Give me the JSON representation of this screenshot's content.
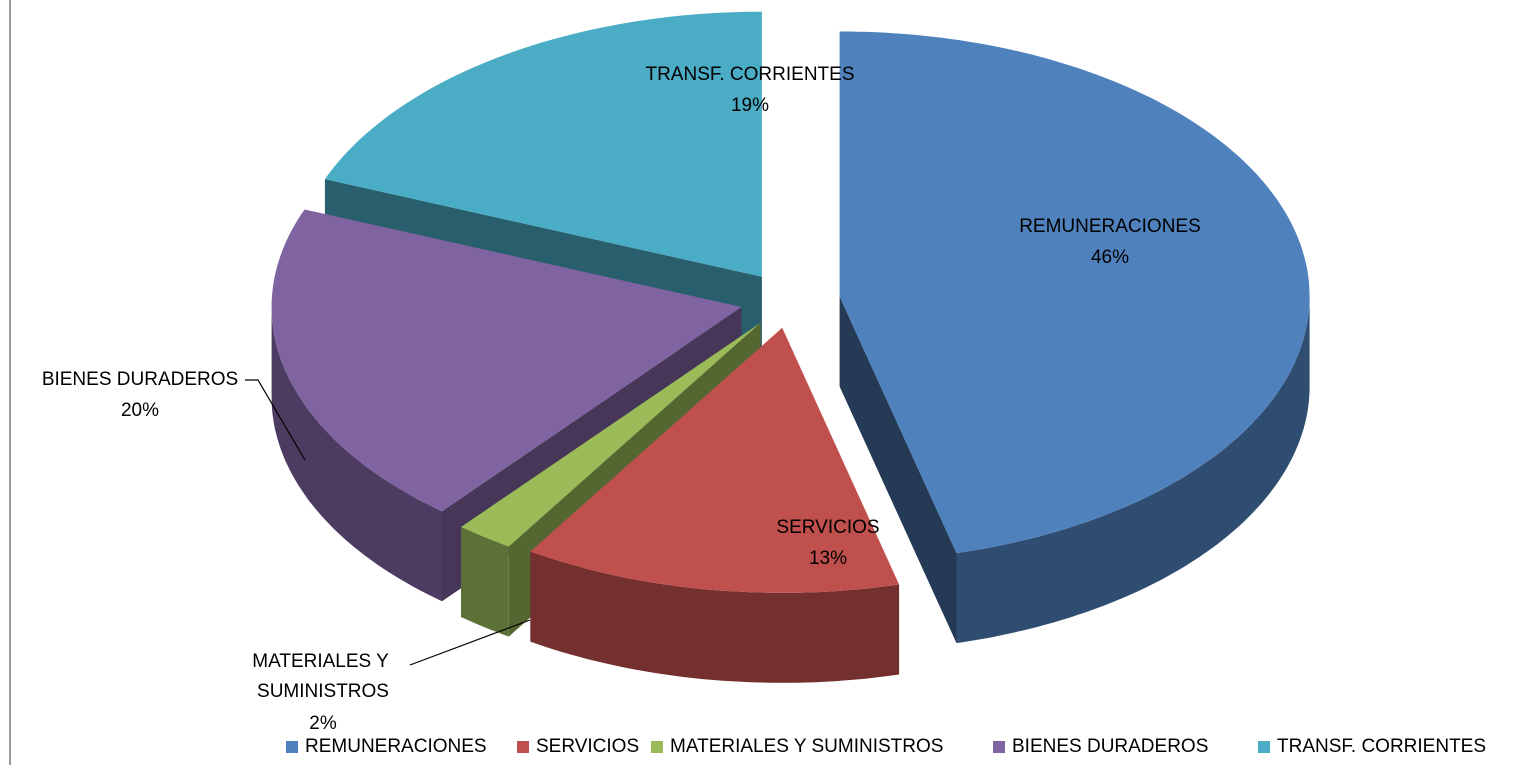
{
  "chart_data": {
    "type": "pie",
    "categories": [
      "REMUNERACIONES",
      "SERVICIOS",
      "MATERIALES Y SUMINISTROS",
      "BIENES DURADEROS",
      "TRANSF. CORRIENTES"
    ],
    "values": [
      46,
      13,
      2,
      20,
      19
    ],
    "value_labels": [
      "46%",
      "13%",
      "2%",
      "20%",
      "19%"
    ],
    "colors": [
      "#4f81bd",
      "#c0504d",
      "#9bbb59",
      "#8064a2",
      "#4bacc6"
    ],
    "legend": "bottom"
  }
}
